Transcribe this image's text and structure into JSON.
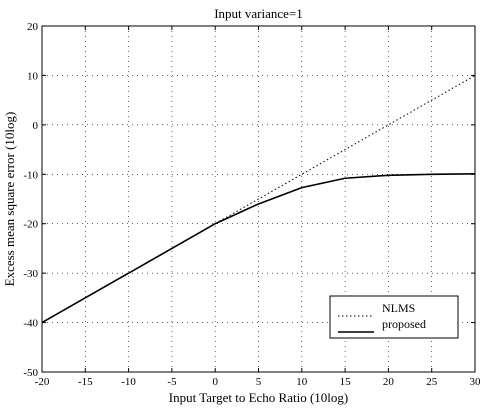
{
  "chart_data": {
    "type": "line",
    "title": "Input variance=1",
    "xlabel": "Input Target to Echo Ratio (10log)",
    "ylabel": "Excess mean square error (10log)",
    "xlim": [
      -20,
      30
    ],
    "ylim": [
      -50,
      20
    ],
    "xticks": [
      -20,
      -15,
      -10,
      -5,
      0,
      5,
      10,
      15,
      20,
      25,
      30
    ],
    "yticks": [
      -50,
      -40,
      -30,
      -20,
      -10,
      0,
      10,
      20
    ],
    "grid": true,
    "legend_position": "bottom-right",
    "series": [
      {
        "name": "NLMS",
        "style": "dotted",
        "x": [
          -20,
          30
        ],
        "y": [
          -40,
          10
        ]
      },
      {
        "name": "proposed",
        "style": "solid",
        "x": [
          -20,
          -15,
          -10,
          -5,
          0,
          5,
          10,
          15,
          20,
          25,
          30
        ],
        "y": [
          -40,
          -35,
          -30,
          -25,
          -20,
          -16,
          -12.7,
          -10.8,
          -10.2,
          -10.0,
          -9.9
        ]
      }
    ]
  }
}
